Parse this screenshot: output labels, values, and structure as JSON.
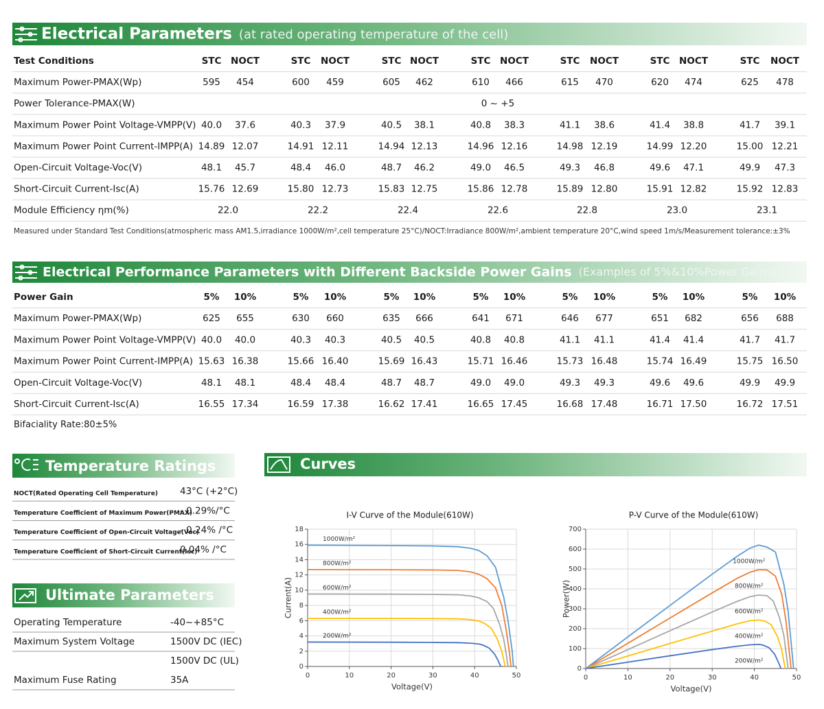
{
  "electrical": {
    "title": "Electrical Parameters",
    "subtitle": "(at rated operating temperature of the cell)",
    "header": [
      "Test Conditions",
      "STC",
      "NOCT",
      "STC",
      "NOCT",
      "STC",
      "NOCT",
      "STC",
      "NOCT",
      "STC",
      "NOCT",
      "STC",
      "NOCT",
      "STC",
      "NOCT"
    ],
    "rows": [
      {
        "label": "Maximum Power-PMAX(Wp)",
        "cells": [
          "595",
          "454",
          "600",
          "459",
          "605",
          "462",
          "610",
          "466",
          "615",
          "470",
          "620",
          "474",
          "625",
          "478"
        ]
      },
      {
        "label": "Power Tolerance-PMAX(W)",
        "cells": [
          "0 ~ +5"
        ]
      },
      {
        "label": "Maximum Power Point Voltage-VMPP(V)",
        "cells": [
          "40.0",
          "37.6",
          "40.3",
          "37.9",
          "40.5",
          "38.1",
          "40.8",
          "38.3",
          "41.1",
          "38.6",
          "41.4",
          "38.8",
          "41.7",
          "39.1"
        ]
      },
      {
        "label": "Maximum Power Point Current-IMPP(A)",
        "cells": [
          "14.89",
          "12.07",
          "14.91",
          "12.11",
          "14.94",
          "12.13",
          "14.96",
          "12.16",
          "14.98",
          "12.19",
          "14.99",
          "12.20",
          "15.00",
          "12.21"
        ]
      },
      {
        "label": "Open-Circuit Voltage-Voc(V)",
        "cells": [
          "48.1",
          "45.7",
          "48.4",
          "46.0",
          "48.7",
          "46.2",
          "49.0",
          "46.5",
          "49.3",
          "46.8",
          "49.6",
          "47.1",
          "49.9",
          "47.3"
        ]
      },
      {
        "label": "Short-Circuit Current-Isc(A)",
        "cells": [
          "15.76",
          "12.69",
          "15.80",
          "12.73",
          "15.83",
          "12.75",
          "15.86",
          "12.78",
          "15.89",
          "12.80",
          "15.91",
          "12.82",
          "15.92",
          "12.83"
        ]
      },
      {
        "label": "Module Efficiency ηm(%)",
        "cells": [
          "22.0",
          "22.2",
          "22.4",
          "22.6",
          "22.8",
          "23.0",
          "23.1"
        ]
      }
    ],
    "note": "Measured under Standard Test Conditions(atmospheric mass AM1.5,irradiance 1000W/m²,cell temperature 25°C)/NOCT:Irradiance 800W/m²,ambient temperature 20°C,wind speed 1m/s/Measurement tolerance:±3%"
  },
  "performance": {
    "title": "Electrical Performance Parameters with Different Backside Power Gains",
    "subtitle": "(Examples of 5%&10%Power Gains)",
    "header": [
      "Power Gain",
      "5%",
      "10%",
      "5%",
      "10%",
      "5%",
      "10%",
      "5%",
      "10%",
      "5%",
      "10%",
      "5%",
      "10%",
      "5%",
      "10%"
    ],
    "rows": [
      {
        "label": "Maximum Power-PMAX(Wp)",
        "cells": [
          "625",
          "655",
          "630",
          "660",
          "635",
          "666",
          "641",
          "671",
          "646",
          "677",
          "651",
          "682",
          "656",
          "688"
        ]
      },
      {
        "label": "Maximum Power Point Voltage-VMPP(V)",
        "cells": [
          "40.0",
          "40.0",
          "40.3",
          "40.3",
          "40.5",
          "40.5",
          "40.8",
          "40.8",
          "41.1",
          "41.1",
          "41.4",
          "41.4",
          "41.7",
          "41.7"
        ]
      },
      {
        "label": "Maximum Power Point Current-IMPP(A)",
        "cells": [
          "15.63",
          "16.38",
          "15.66",
          "16.40",
          "15.69",
          "16.43",
          "15.71",
          "16.46",
          "15.73",
          "16.48",
          "15.74",
          "16.49",
          "15.75",
          "16.50"
        ]
      },
      {
        "label": "Open-Circuit Voltage-Voc(V)",
        "cells": [
          "48.1",
          "48.1",
          "48.4",
          "48.4",
          "48.7",
          "48.7",
          "49.0",
          "49.0",
          "49.3",
          "49.3",
          "49.6",
          "49.6",
          "49.9",
          "49.9"
        ]
      },
      {
        "label": "Short-Circuit Current-Isc(A)",
        "cells": [
          "16.55",
          "17.34",
          "16.59",
          "17.38",
          "16.62",
          "17.41",
          "16.65",
          "17.45",
          "16.68",
          "17.48",
          "16.71",
          "17.50",
          "16.72",
          "17.51"
        ]
      }
    ],
    "note": "Bifaciality Rate:80±5%"
  },
  "temperature": {
    "title": "Temperature Ratings",
    "rows": [
      {
        "label": "NOCT(Rated Operating Cell Temperature)",
        "value": "43°C (+2°C)"
      },
      {
        "label": "Temperature Coefficient of Maximum Power(PMAX)",
        "value": "- 0.29%/°C"
      },
      {
        "label": "Temperature Coefficient of Open-Circuit Voltage(Voc)",
        "value": "- 0.24% /°C"
      },
      {
        "label": "Temperature Coefficient of Short-Circuit Current(Isc)",
        "value": "0.04% /°C"
      }
    ]
  },
  "ultimate": {
    "title": "Ultimate Parameters",
    "rows": [
      {
        "label": "Operating Temperature",
        "value": "-40~+85°C"
      },
      {
        "label": "Maximum System Voltage",
        "value": "1500V DC (IEC)"
      },
      {
        "value": "1500V DC (UL)"
      },
      {
        "label": "Maximum Fuse Rating",
        "value": "35A"
      }
    ]
  },
  "curves": {
    "title": "Curves"
  },
  "chart_data": [
    {
      "type": "line",
      "title": "I-V Curve of the Module(610W)",
      "x_label": "Voltage(V)",
      "y_label": "Current(A)",
      "xlim": [
        0,
        50
      ],
      "xticks": [
        0,
        10,
        20,
        30,
        40,
        50
      ],
      "ylim": [
        0,
        18
      ],
      "yticks": [
        0,
        2,
        4,
        6,
        8,
        10,
        12,
        14,
        16,
        18
      ],
      "grid": true,
      "series": [
        {
          "name": "1000W/m²",
          "color": "#5b9bd5",
          "x": [
            0,
            20,
            30,
            36,
            39,
            41,
            43,
            45,
            47,
            48,
            49,
            49.3
          ],
          "values": [
            15.9,
            15.85,
            15.8,
            15.7,
            15.5,
            15.2,
            14.5,
            13,
            9,
            6,
            2,
            0
          ]
        },
        {
          "name": "800W/m²",
          "color": "#ed7d31",
          "x": [
            0,
            20,
            30,
            36,
            39,
            41,
            43,
            45,
            46.5,
            47.5,
            48.3,
            48.7
          ],
          "values": [
            12.7,
            12.68,
            12.65,
            12.6,
            12.4,
            12.1,
            11.5,
            10.3,
            8,
            5,
            2,
            0
          ]
        },
        {
          "name": "600W/m²",
          "color": "#a5a5a5",
          "x": [
            0,
            20,
            30,
            36,
            39,
            41,
            43,
            44.5,
            46,
            47,
            47.6,
            48
          ],
          "values": [
            9.5,
            9.48,
            9.45,
            9.4,
            9.25,
            9,
            8.5,
            7.6,
            5.5,
            3.5,
            1.5,
            0
          ]
        },
        {
          "name": "400W/m²",
          "color": "#ffc000",
          "x": [
            0,
            20,
            30,
            36,
            39,
            41,
            42.5,
            44,
            45.5,
            46.5,
            47,
            47.3
          ],
          "values": [
            6.3,
            6.3,
            6.28,
            6.25,
            6.15,
            5.95,
            5.6,
            5,
            3.5,
            2,
            0.8,
            0
          ]
        },
        {
          "name": "200W/m²",
          "color": "#4472c4",
          "x": [
            0,
            20,
            30,
            36,
            39,
            41,
            42,
            43.5,
            44.8,
            45.6,
            46,
            46.3
          ],
          "values": [
            3.2,
            3.18,
            3.15,
            3.12,
            3.05,
            2.95,
            2.8,
            2.4,
            1.6,
            0.8,
            0.3,
            0
          ]
        }
      ]
    },
    {
      "type": "line",
      "title": "P-V Curve of the Module(610W)",
      "x_label": "Voltage(V)",
      "y_label": "Power(W)",
      "xlim": [
        0,
        50
      ],
      "xticks": [
        0,
        10,
        20,
        30,
        40,
        50
      ],
      "ylim": [
        0,
        700
      ],
      "yticks": [
        0,
        100,
        200,
        300,
        400,
        500,
        600,
        700
      ],
      "grid": true,
      "series": [
        {
          "name": "1000W/m²",
          "color": "#5b9bd5",
          "x": [
            0,
            10,
            20,
            30,
            36,
            39,
            41,
            43,
            45,
            47,
            48,
            49.3
          ],
          "values": [
            0,
            159,
            317,
            474,
            565,
            605,
            620,
            610,
            585,
            423,
            288,
            0
          ]
        },
        {
          "name": "800W/m²",
          "color": "#ed7d31",
          "x": [
            0,
            10,
            20,
            30,
            36,
            39,
            41,
            43,
            45,
            46.5,
            47.5,
            48.7
          ],
          "values": [
            0,
            127,
            254,
            380,
            454,
            484,
            496,
            495,
            464,
            372,
            238,
            0
          ]
        },
        {
          "name": "600W/m²",
          "color": "#a5a5a5",
          "x": [
            0,
            10,
            20,
            30,
            36,
            39,
            41,
            43,
            44.5,
            46,
            47,
            48
          ],
          "values": [
            0,
            95,
            190,
            284,
            338,
            361,
            369,
            366,
            338,
            253,
            165,
            0
          ]
        },
        {
          "name": "400W/m²",
          "color": "#ffc000",
          "x": [
            0,
            10,
            20,
            30,
            36,
            39,
            41,
            42.5,
            44,
            45.5,
            46.5,
            47.3
          ],
          "values": [
            0,
            63,
            126,
            188,
            225,
            240,
            244,
            238,
            220,
            159,
            93,
            0
          ]
        },
        {
          "name": "200W/m²",
          "color": "#4472c4",
          "x": [
            0,
            10,
            20,
            30,
            36,
            39,
            41,
            42,
            43.5,
            44.8,
            45.6,
            46.3
          ],
          "values": [
            0,
            32,
            64,
            95,
            112,
            119,
            121,
            118,
            104,
            72,
            36,
            0
          ]
        }
      ]
    }
  ]
}
